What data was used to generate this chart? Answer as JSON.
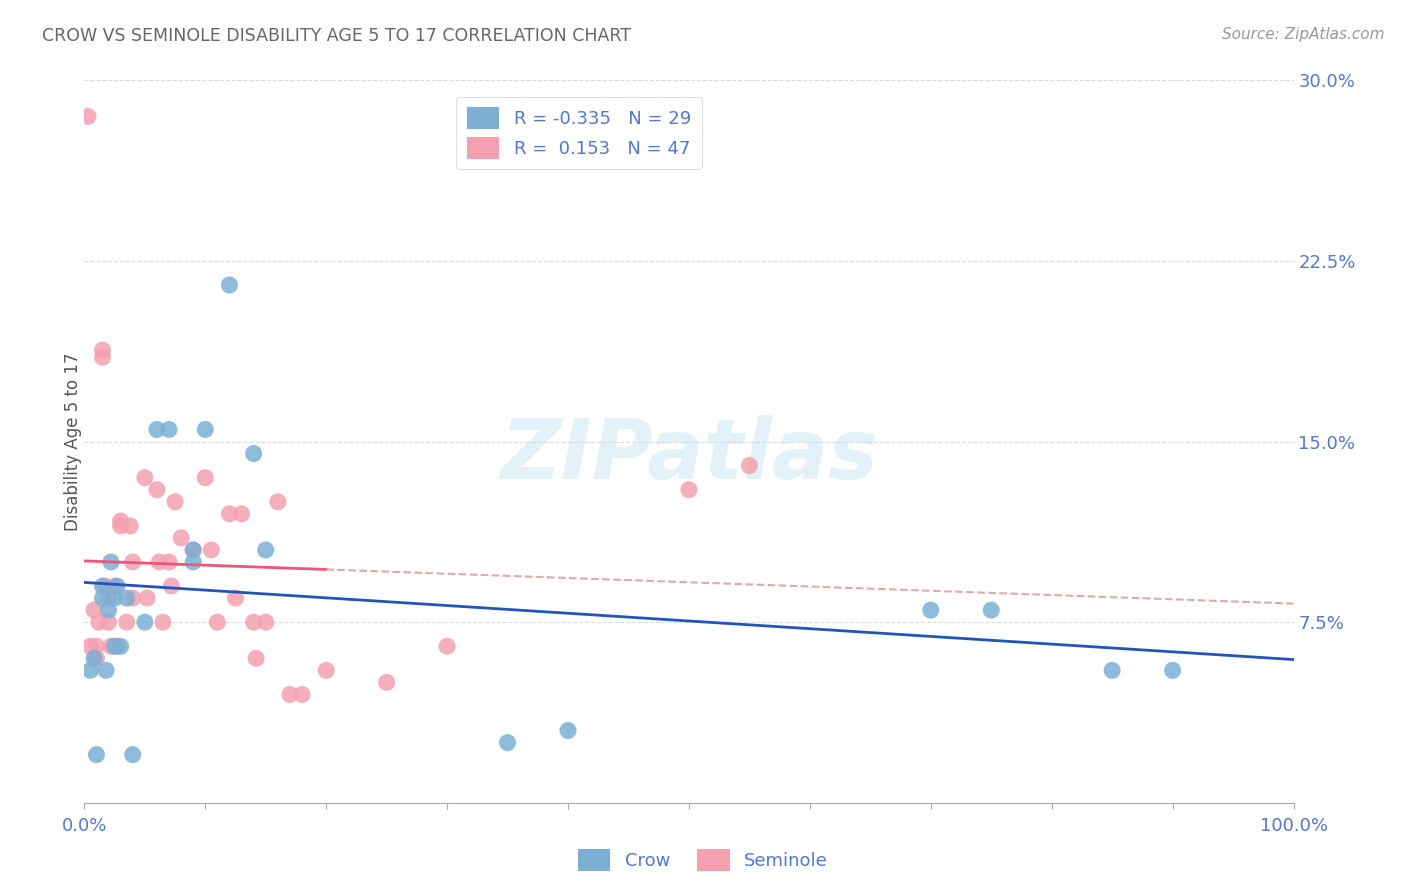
{
  "title": "CROW VS SEMINOLE DISABILITY AGE 5 TO 17 CORRELATION CHART",
  "source": "Source: ZipAtlas.com",
  "ylabel": "Disability Age 5 to 17",
  "crow_color": "#7BAFD4",
  "seminole_color": "#F4A0B0",
  "crow_line_color": "#2255BB",
  "seminole_line_color": "#EE5577",
  "seminole_dash_color": "#DDAAAA",
  "background_color": "#FFFFFF",
  "grid_color": "#CCCCCC",
  "axis_label_color": "#5577CC",
  "title_color": "#666666",
  "xlim": [
    0.0,
    1.0
  ],
  "ylim": [
    0.0,
    0.3
  ],
  "crow_R": -0.335,
  "crow_N": 29,
  "seminole_R": 0.153,
  "seminole_N": 47,
  "crow_scatter_x": [
    0.005,
    0.008,
    0.01,
    0.015,
    0.015,
    0.018,
    0.02,
    0.022,
    0.025,
    0.025,
    0.027,
    0.03,
    0.035,
    0.04,
    0.05,
    0.06,
    0.07,
    0.09,
    0.09,
    0.1,
    0.12,
    0.14,
    0.15,
    0.35,
    0.4,
    0.7,
    0.75,
    0.85,
    0.9
  ],
  "crow_scatter_y": [
    0.055,
    0.06,
    0.02,
    0.085,
    0.09,
    0.055,
    0.08,
    0.1,
    0.085,
    0.065,
    0.09,
    0.065,
    0.085,
    0.02,
    0.075,
    0.155,
    0.155,
    0.1,
    0.105,
    0.155,
    0.215,
    0.145,
    0.105,
    0.025,
    0.03,
    0.08,
    0.08,
    0.055,
    0.055
  ],
  "seminole_scatter_x": [
    0.003,
    0.005,
    0.008,
    0.01,
    0.01,
    0.012,
    0.015,
    0.015,
    0.017,
    0.02,
    0.02,
    0.022,
    0.025,
    0.027,
    0.03,
    0.03,
    0.035,
    0.038,
    0.04,
    0.04,
    0.05,
    0.052,
    0.06,
    0.062,
    0.065,
    0.07,
    0.072,
    0.075,
    0.08,
    0.09,
    0.1,
    0.105,
    0.11,
    0.12,
    0.125,
    0.13,
    0.14,
    0.142,
    0.15,
    0.16,
    0.17,
    0.18,
    0.2,
    0.25,
    0.3,
    0.5,
    0.55
  ],
  "seminole_scatter_y": [
    0.285,
    0.065,
    0.08,
    0.06,
    0.065,
    0.075,
    0.185,
    0.188,
    0.09,
    0.085,
    0.075,
    0.065,
    0.09,
    0.065,
    0.115,
    0.117,
    0.075,
    0.115,
    0.1,
    0.085,
    0.135,
    0.085,
    0.13,
    0.1,
    0.075,
    0.1,
    0.09,
    0.125,
    0.11,
    0.105,
    0.135,
    0.105,
    0.075,
    0.12,
    0.085,
    0.12,
    0.075,
    0.06,
    0.075,
    0.125,
    0.045,
    0.045,
    0.055,
    0.05,
    0.065,
    0.13,
    0.14
  ],
  "watermark_text": "ZIPatlas",
  "yticks": [
    0.0,
    0.075,
    0.15,
    0.225,
    0.3
  ],
  "ytick_labels": [
    "",
    "7.5%",
    "15.0%",
    "22.5%",
    "30.0%"
  ],
  "xticks": [
    0.0,
    0.1,
    0.2,
    0.3,
    0.4,
    0.5,
    0.6,
    0.7,
    0.8,
    0.9,
    1.0
  ],
  "xtick_labels": [
    "0.0%",
    "",
    "",
    "",
    "",
    "",
    "",
    "",
    "",
    "",
    "100.0%"
  ]
}
